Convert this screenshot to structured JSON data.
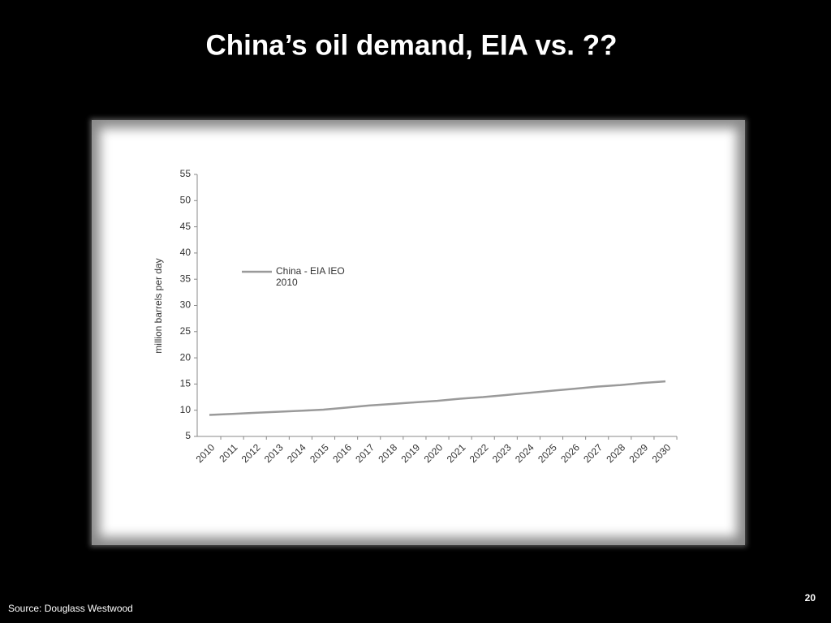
{
  "chart_data": {
    "type": "line",
    "title": "China’s oil demand, EIA vs. ??",
    "y_label": "million barrels per day",
    "categories": [
      "2010",
      "2011",
      "2012",
      "2013",
      "2014",
      "2015",
      "2016",
      "2017",
      "2018",
      "2019",
      "2020",
      "2021",
      "2022",
      "2023",
      "2024",
      "2025",
      "2026",
      "2027",
      "2028",
      "2029",
      "2030"
    ],
    "series": [
      {
        "name": "China - EIA IEO 2010",
        "color": "#9a9a9a",
        "values": [
          9.1,
          9.3,
          9.5,
          9.7,
          9.9,
          10.1,
          10.5,
          10.9,
          11.2,
          11.5,
          11.8,
          12.2,
          12.5,
          12.9,
          13.3,
          13.7,
          14.1,
          14.5,
          14.8,
          15.2,
          15.5
        ]
      }
    ],
    "ylim": [
      5,
      55
    ],
    "yticks": [
      5,
      10,
      15,
      20,
      25,
      30,
      35,
      40,
      45,
      50,
      55
    ],
    "grid": false
  },
  "footer": {
    "source": "Source: Douglass Westwood",
    "page": "20"
  }
}
